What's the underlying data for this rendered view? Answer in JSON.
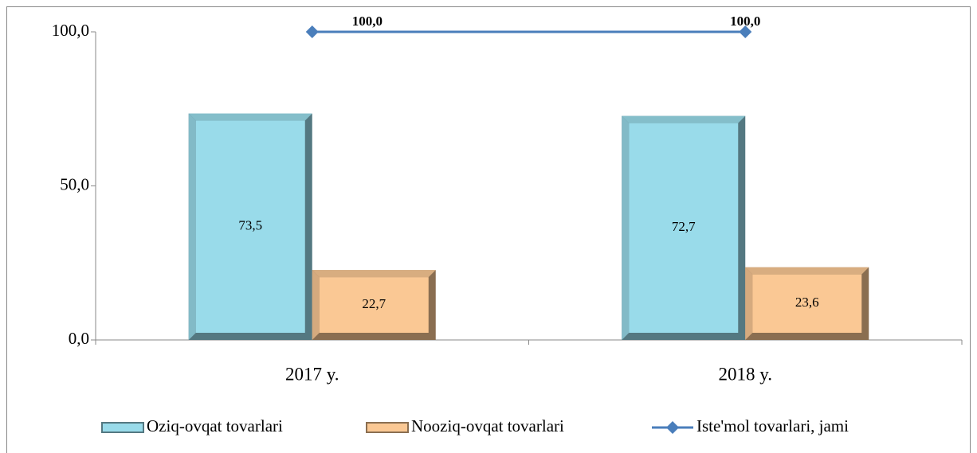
{
  "chart_data": {
    "type": "bar",
    "categories": [
      "2017 y.",
      "2018 y."
    ],
    "series": [
      {
        "name": "Oziq-ovqat tovarlari",
        "color": "#99dbea",
        "values": [
          73.5,
          72.7
        ],
        "value_labels": [
          "73,5",
          "72,7"
        ]
      },
      {
        "name": "Nooziq-ovqat tovarlari",
        "color": "#fac894",
        "values": [
          22.7,
          23.6
        ],
        "value_labels": [
          "22,7",
          "23,6"
        ]
      },
      {
        "name": "Iste'mol tovarlari, jami",
        "type": "line",
        "color": "#4a7ebb",
        "values": [
          100,
          100
        ],
        "value_labels": [
          "100,0",
          "100,0"
        ]
      }
    ],
    "ylim": [
      0,
      100
    ],
    "yticks": [
      {
        "value": 0,
        "label": "0,0"
      },
      {
        "value": 50,
        "label": "50,0"
      },
      {
        "value": 100,
        "label": "100,0"
      }
    ],
    "legend": "bottom"
  }
}
